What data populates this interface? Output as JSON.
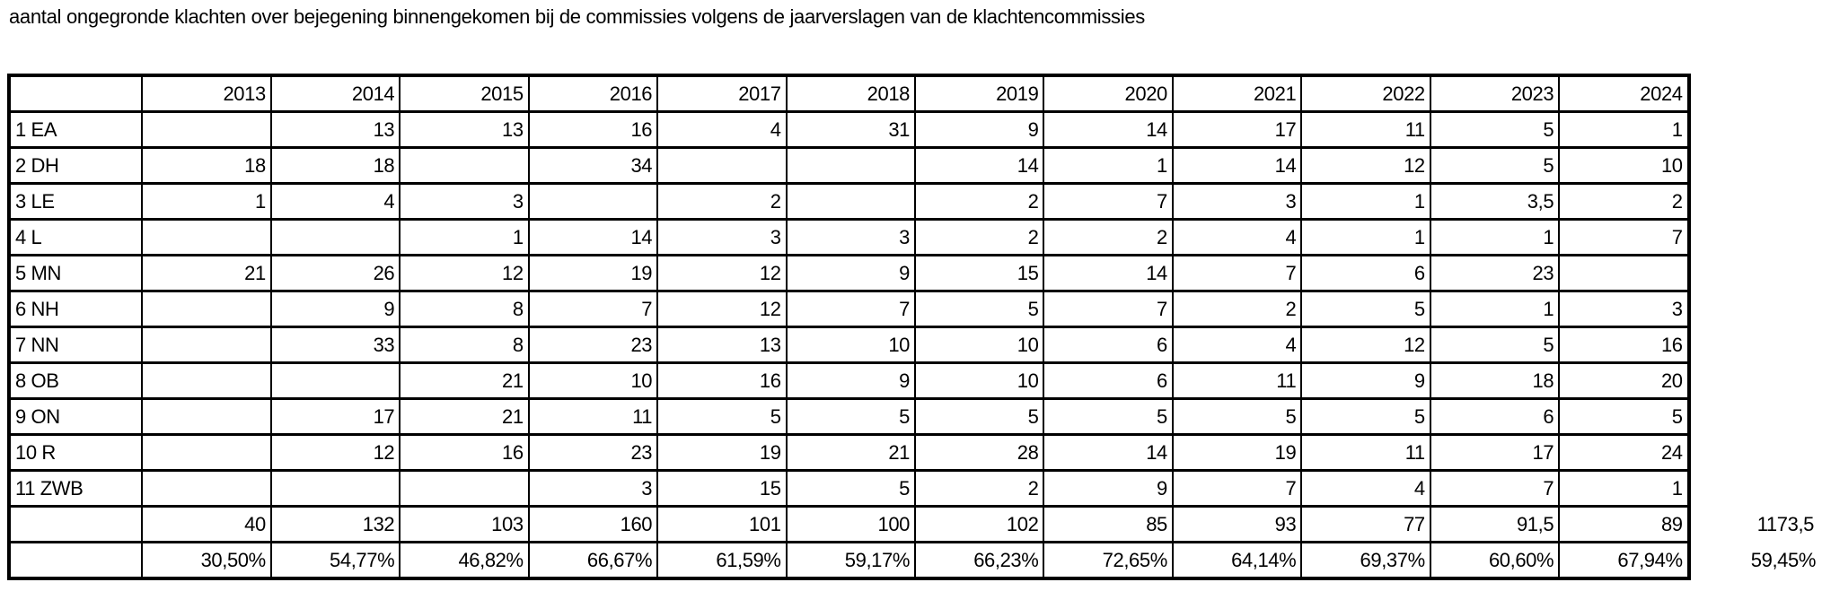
{
  "chart_data": {
    "type": "table",
    "title": "aantal ongegronde klachten over bejegening binnengekomen bij de commissies volgens de jaarverslagen van de klachtencommissies",
    "columns": [
      "2013",
      "2014",
      "2015",
      "2016",
      "2017",
      "2018",
      "2019",
      "2020",
      "2021",
      "2022",
      "2023",
      "2024"
    ],
    "rows": [
      {
        "label": "1 EA",
        "values": [
          "",
          "13",
          "13",
          "16",
          "4",
          "31",
          "9",
          "14",
          "17",
          "11",
          "5",
          "1"
        ]
      },
      {
        "label": "2 DH",
        "values": [
          "18",
          "18",
          "",
          "34",
          "",
          "",
          "14",
          "1",
          "14",
          "12",
          "5",
          "10"
        ]
      },
      {
        "label": "3 LE",
        "values": [
          "1",
          "4",
          "3",
          "",
          "2",
          "",
          "2",
          "7",
          "3",
          "1",
          "3,5",
          "2"
        ]
      },
      {
        "label": "4 L",
        "values": [
          "",
          "",
          "1",
          "14",
          "3",
          "3",
          "2",
          "2",
          "4",
          "1",
          "1",
          "7"
        ]
      },
      {
        "label": "5 MN",
        "values": [
          "21",
          "26",
          "12",
          "19",
          "12",
          "9",
          "15",
          "14",
          "7",
          "6",
          "23",
          ""
        ]
      },
      {
        "label": "6 NH",
        "values": [
          "",
          "9",
          "8",
          "7",
          "12",
          "7",
          "5",
          "7",
          "2",
          "5",
          "1",
          "3"
        ]
      },
      {
        "label": "7 NN",
        "values": [
          "",
          "33",
          "8",
          "23",
          "13",
          "10",
          "10",
          "6",
          "4",
          "12",
          "5",
          "16"
        ]
      },
      {
        "label": "8 OB",
        "values": [
          "",
          "",
          "21",
          "10",
          "16",
          "9",
          "10",
          "6",
          "11",
          "9",
          "18",
          "20"
        ]
      },
      {
        "label": "9 ON",
        "values": [
          "",
          "17",
          "21",
          "11",
          "5",
          "5",
          "5",
          "5",
          "5",
          "5",
          "6",
          "5"
        ]
      },
      {
        "label": "10 R",
        "values": [
          "",
          "12",
          "16",
          "23",
          "19",
          "21",
          "28",
          "14",
          "19",
          "11",
          "17",
          "24"
        ]
      },
      {
        "label": "11 ZWB",
        "values": [
          "",
          "",
          "",
          "3",
          "15",
          "5",
          "2",
          "9",
          "7",
          "4",
          "7",
          "1"
        ]
      }
    ],
    "totals_row": {
      "label": "",
      "values": [
        "40",
        "132",
        "103",
        "160",
        "101",
        "100",
        "102",
        "85",
        "93",
        "77",
        "91,5",
        "89"
      ],
      "grand_total": "1173,5"
    },
    "percent_row": {
      "label": "",
      "values": [
        "30,50%",
        "54,77%",
        "46,82%",
        "66,67%",
        "61,59%",
        "59,17%",
        "66,23%",
        "72,65%",
        "64,14%",
        "69,37%",
        "60,60%",
        "67,94%"
      ],
      "overall": "59,45%"
    }
  }
}
